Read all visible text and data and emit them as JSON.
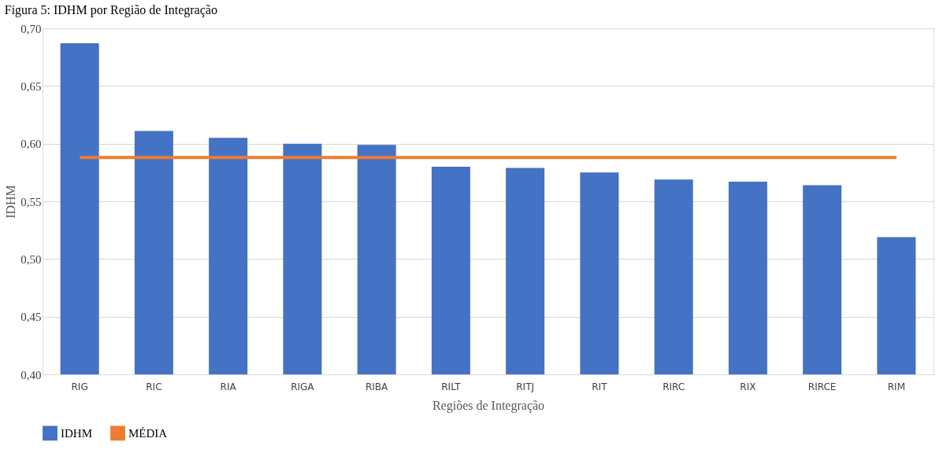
{
  "chart_data": {
    "type": "bar",
    "title": "Figura 5: IDHM por Região de Integração",
    "xlabel": "Regiões de Integração",
    "ylabel": "IDHM",
    "categories": [
      "RIG",
      "RIC",
      "RIA",
      "RIGA",
      "RIBA",
      "RILT",
      "RITJ",
      "RIT",
      "RIRC",
      "RIX",
      "RIRCE",
      "RIM"
    ],
    "series": [
      {
        "name": "IDHM",
        "color": "#4472c4",
        "values": [
          0.687,
          0.611,
          0.605,
          0.6,
          0.599,
          0.58,
          0.579,
          0.575,
          0.569,
          0.567,
          0.564,
          0.519
        ]
      },
      {
        "name": "MÉDIA",
        "type": "line",
        "color": "#ed7d31",
        "values": [
          0.588,
          0.588,
          0.588,
          0.588,
          0.588,
          0.588,
          0.588,
          0.588,
          0.588,
          0.588,
          0.588,
          0.588
        ]
      }
    ],
    "ylim": [
      0.4,
      0.7
    ],
    "yticks": [
      {
        "value": 0.4,
        "label": "0,40"
      },
      {
        "value": 0.45,
        "label": "0,45"
      },
      {
        "value": 0.5,
        "label": "0,50"
      },
      {
        "value": 0.55,
        "label": "0,55"
      },
      {
        "value": 0.6,
        "label": "0,60"
      },
      {
        "value": 0.65,
        "label": "0,65"
      },
      {
        "value": 0.7,
        "label": "0,70"
      }
    ],
    "grid": "y",
    "legend": "bottom"
  }
}
